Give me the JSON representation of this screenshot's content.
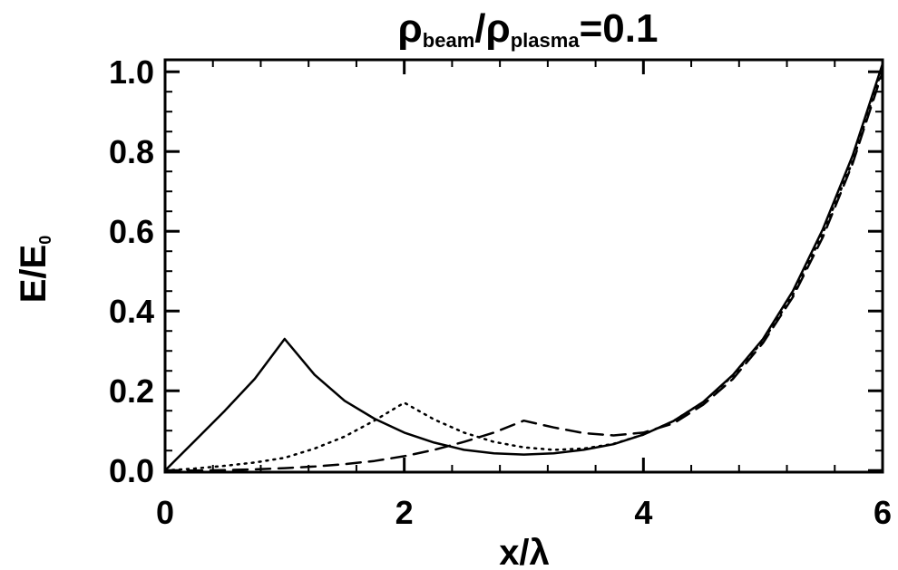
{
  "chart_data": {
    "type": "line",
    "title": {
      "base1": "ρ",
      "sub1": "beam",
      "slash": "/",
      "base2": "ρ",
      "sub2": "plasma",
      "tail": "=0.1"
    },
    "xlabel": "x/λ",
    "ylabel": {
      "main": "E/E",
      "sub": "0"
    },
    "xlim": [
      0,
      6
    ],
    "ylim": [
      -0.004,
      1.03
    ],
    "xticks": [
      0,
      2,
      4,
      6
    ],
    "xtick_labels": [
      "0",
      "2",
      "4",
      "6"
    ],
    "yticks": [
      0.0,
      0.2,
      0.4,
      0.6,
      0.8,
      1.0
    ],
    "ytick_labels": [
      "0.0",
      "0.2",
      "0.4",
      "0.6",
      "0.8",
      "1.0"
    ],
    "grid": false,
    "series": [
      {
        "style": "solid",
        "peak_x": 1,
        "x": [
          0,
          0.25,
          0.5,
          0.75,
          1.0,
          1.25,
          1.5,
          1.75,
          2.0,
          2.25,
          2.5,
          2.75,
          3.0,
          3.25,
          3.5,
          3.75,
          4.0,
          4.25,
          4.5,
          4.75,
          5.0,
          5.25,
          5.5,
          5.75,
          6.0
        ],
        "y": [
          0.0,
          0.075,
          0.15,
          0.23,
          0.33,
          0.24,
          0.175,
          0.13,
          0.095,
          0.07,
          0.052,
          0.043,
          0.04,
          0.043,
          0.052,
          0.066,
          0.09,
          0.124,
          0.172,
          0.24,
          0.33,
          0.45,
          0.605,
          0.79,
          1.02
        ]
      },
      {
        "style": "dotted",
        "peak_x": 2,
        "x": [
          0,
          0.25,
          0.5,
          0.75,
          1.0,
          1.25,
          1.5,
          1.75,
          2.0,
          2.25,
          2.5,
          2.75,
          3.0,
          3.25,
          3.5,
          3.75,
          4.0,
          4.25,
          4.5,
          4.75,
          5.0,
          5.25,
          5.5,
          5.75,
          6.0
        ],
        "y": [
          0.0,
          0.005,
          0.012,
          0.02,
          0.032,
          0.055,
          0.085,
          0.125,
          0.17,
          0.128,
          0.095,
          0.072,
          0.058,
          0.052,
          0.055,
          0.067,
          0.09,
          0.124,
          0.172,
          0.238,
          0.325,
          0.44,
          0.595,
          0.775,
          1.01
        ]
      },
      {
        "style": "dashed",
        "peak_x": 3,
        "x": [
          0,
          0.25,
          0.5,
          0.75,
          1.0,
          1.25,
          1.5,
          1.75,
          2.0,
          2.25,
          2.5,
          2.75,
          3.0,
          3.25,
          3.5,
          3.75,
          4.0,
          4.25,
          4.5,
          4.75,
          5.0,
          5.25,
          5.5,
          5.75,
          6.0
        ],
        "y": [
          0.0,
          0.0,
          0.001,
          0.003,
          0.006,
          0.01,
          0.016,
          0.024,
          0.036,
          0.052,
          0.072,
          0.095,
          0.125,
          0.108,
          0.094,
          0.088,
          0.095,
          0.118,
          0.165,
          0.23,
          0.32,
          0.435,
          0.585,
          0.77,
          1.0
        ]
      }
    ]
  }
}
